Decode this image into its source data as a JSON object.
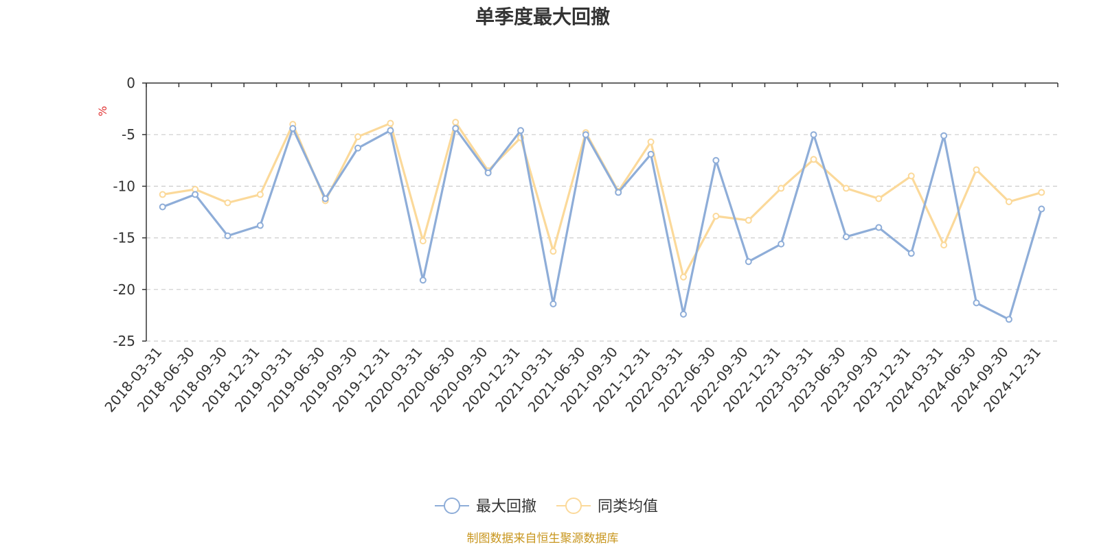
{
  "chart_data": {
    "type": "line",
    "title": "单季度最大回撤",
    "ylabel": "%",
    "ylim": [
      -25,
      0
    ],
    "yticks": [
      0,
      -5,
      -10,
      -15,
      -20,
      -25
    ],
    "grid": true,
    "legend_position": "bottom",
    "categories": [
      "2018-03-31",
      "2018-06-30",
      "2018-09-30",
      "2018-12-31",
      "2019-03-31",
      "2019-06-30",
      "2019-09-30",
      "2019-12-31",
      "2020-03-31",
      "2020-06-30",
      "2020-09-30",
      "2020-12-31",
      "2021-03-31",
      "2021-06-30",
      "2021-09-30",
      "2021-12-31",
      "2022-03-31",
      "2022-06-30",
      "2022-09-30",
      "2022-12-31",
      "2023-03-31",
      "2023-06-30",
      "2023-09-30",
      "2023-12-31",
      "2024-03-31",
      "2024-06-30",
      "2024-09-30",
      "2024-12-31"
    ],
    "series": [
      {
        "name": "最大回撤",
        "color": "#8eadd8",
        "values": [
          -12.0,
          -10.8,
          -14.8,
          -13.8,
          -4.4,
          -11.2,
          -6.3,
          -4.6,
          -19.1,
          -4.4,
          -8.7,
          -4.6,
          -21.4,
          -5.0,
          -10.6,
          -6.9,
          -22.4,
          -7.5,
          -17.3,
          -15.6,
          -5.0,
          -14.9,
          -14.0,
          -16.5,
          -5.1,
          -21.3,
          -22.9,
          -12.2
        ]
      },
      {
        "name": "同类均值",
        "color": "#fbd99a",
        "values": [
          -10.8,
          -10.3,
          -11.6,
          -10.8,
          -4.0,
          -11.4,
          -5.2,
          -3.9,
          -15.3,
          -3.8,
          -8.5,
          -5.3,
          -16.3,
          -4.8,
          -10.5,
          -5.7,
          -18.8,
          -12.9,
          -13.3,
          -10.2,
          -7.4,
          -10.2,
          -11.2,
          -9.0,
          -15.7,
          -8.4,
          -11.5,
          -10.6
        ]
      }
    ]
  },
  "source_note": "制图数据来自恒生聚源数据库"
}
